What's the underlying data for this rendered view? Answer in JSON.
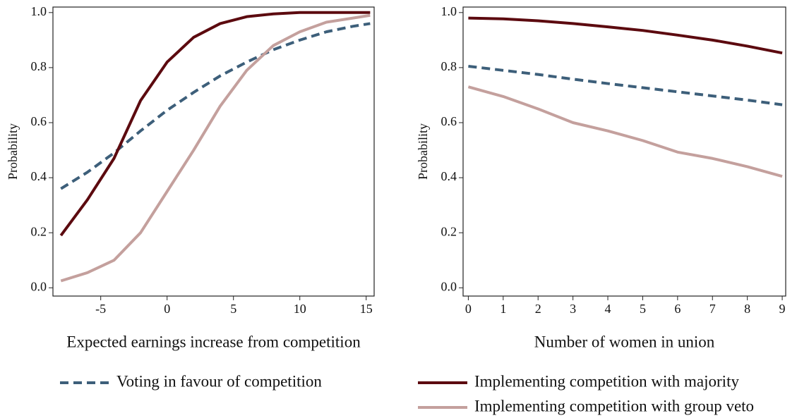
{
  "chart_data": [
    {
      "type": "line",
      "x_label": "Expected earnings increase from competition",
      "y_label": "Probability",
      "x": [
        -8,
        -6,
        -4,
        -2,
        0,
        2,
        4,
        6,
        8,
        10,
        12,
        14,
        15.3
      ],
      "series": [
        {
          "name": "Voting in favour of competition",
          "color": "#3d5f7a",
          "dash": true,
          "values": [
            0.36,
            0.42,
            0.49,
            0.57,
            0.645,
            0.71,
            0.77,
            0.82,
            0.865,
            0.9,
            0.93,
            0.95,
            0.96
          ]
        },
        {
          "name": "Implementing competition with majority",
          "color": "#5c0a0f",
          "dash": false,
          "values": [
            0.19,
            0.32,
            0.47,
            0.68,
            0.82,
            0.91,
            0.96,
            0.985,
            0.995,
            1.0,
            1.0,
            1.0,
            1.0
          ]
        },
        {
          "name": "Implementing competition with group veto",
          "color": "#c4a09d",
          "dash": false,
          "values": [
            0.025,
            0.055,
            0.1,
            0.2,
            0.35,
            0.5,
            0.66,
            0.79,
            0.88,
            0.93,
            0.965,
            0.98,
            0.99
          ]
        }
      ],
      "xlim": [
        -8.6,
        15.6
      ],
      "xticks": [
        -5,
        0,
        5,
        10,
        15
      ],
      "ylim": [
        -0.03,
        1.02
      ],
      "yticks": [
        {
          "value": 0,
          "label": "0.0"
        },
        0.2,
        0.4,
        0.6,
        0.8,
        {
          "value": 1,
          "label": "1.0"
        }
      ]
    },
    {
      "type": "line",
      "x_label": "Number of women in union",
      "y_label": "Probability",
      "x": [
        0,
        1,
        2,
        3,
        4,
        5,
        6,
        7,
        8,
        9
      ],
      "series": [
        {
          "name": "Voting in favour of competition",
          "color": "#3d5f7a",
          "dash": true,
          "values": [
            0.805,
            0.79,
            0.775,
            0.758,
            0.742,
            0.727,
            0.712,
            0.697,
            0.682,
            0.665
          ]
        },
        {
          "name": "Implementing competition with majority",
          "color": "#5c0a0f",
          "dash": false,
          "values": [
            0.98,
            0.977,
            0.97,
            0.96,
            0.948,
            0.935,
            0.918,
            0.9,
            0.878,
            0.853
          ]
        },
        {
          "name": "Implementing competition with group veto",
          "color": "#c4a09d",
          "dash": false,
          "values": [
            0.73,
            0.695,
            0.65,
            0.6,
            0.57,
            0.535,
            0.493,
            0.47,
            0.44,
            0.405
          ]
        }
      ],
      "xlim": [
        -0.15,
        9.1
      ],
      "xticks": [
        0,
        1,
        2,
        3,
        4,
        5,
        6,
        7,
        8,
        9
      ],
      "ylim": [
        -0.03,
        1.02
      ],
      "yticks": [
        {
          "value": 0,
          "label": "0.0"
        },
        0.2,
        0.4,
        0.6,
        0.8,
        {
          "value": 1,
          "label": "1.0"
        }
      ]
    }
  ]
}
